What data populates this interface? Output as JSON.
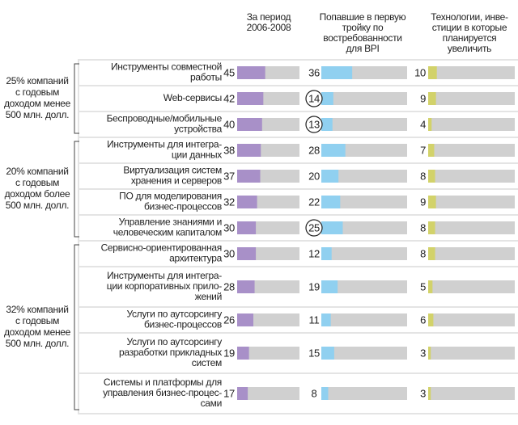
{
  "chart_data": {
    "type": "bar",
    "categories": [
      [
        "Инструменты совместной",
        "работы"
      ],
      [
        "Web-сервисы"
      ],
      [
        "Беспроводные/мобильные",
        "устройства"
      ],
      [
        "Инструменты для интегра-",
        "ции данных"
      ],
      [
        "Виртуализация систем",
        "хранения и серверов"
      ],
      [
        "ПО для моделирования",
        "бизнес-процессов"
      ],
      [
        "Управление знаниями и",
        "человеческим капиталом"
      ],
      [
        "Сервисно-ориентированная",
        "архитектура"
      ],
      [
        "Инструменты для интегра-",
        "ции корпоративных прило-",
        "жений"
      ],
      [
        "Услуги по аутсорсингу",
        "бизнес-процессов"
      ],
      [
        "Услуги по аутсорсингу",
        "разработки прикладных",
        "систем"
      ],
      [
        "Системы и платформы для",
        "управления бизнес-процес-",
        "сами"
      ]
    ],
    "series": [
      {
        "name": [
          "За период",
          "2006-2008"
        ],
        "color": "#a890c8",
        "values": [
          45,
          42,
          40,
          38,
          37,
          32,
          30,
          30,
          28,
          26,
          19,
          17
        ]
      },
      {
        "name": [
          "Попавшие в первую",
          "тройку по",
          "востребованности",
          "для BPI"
        ],
        "color": "#90d0f0",
        "values": [
          36,
          14,
          13,
          28,
          20,
          22,
          25,
          12,
          19,
          11,
          15,
          8
        ],
        "highlight": [
          1,
          2,
          6
        ]
      },
      {
        "name": [
          "Технологии, инве-",
          "стиции в которые",
          "планируется",
          "увеличить"
        ],
        "color": "#d2d26a",
        "values": [
          10,
          9,
          4,
          7,
          8,
          9,
          8,
          8,
          5,
          6,
          3,
          3
        ]
      }
    ],
    "xlim": [
      0,
      100
    ],
    "groups": [
      {
        "label": [
          "25% компаний",
          "с годовым",
          "доходом менее",
          "500 млн. долл."
        ],
        "rows": [
          0,
          2
        ]
      },
      {
        "label": [
          "20% компаний",
          "с годовым",
          "доходом более",
          "500 млн. долл."
        ],
        "rows": [
          3,
          6
        ]
      },
      {
        "label": [
          "32% компаний",
          "с годовым",
          "доходом менее",
          "500 млн. долл."
        ],
        "rows": [
          7,
          11
        ]
      }
    ]
  }
}
